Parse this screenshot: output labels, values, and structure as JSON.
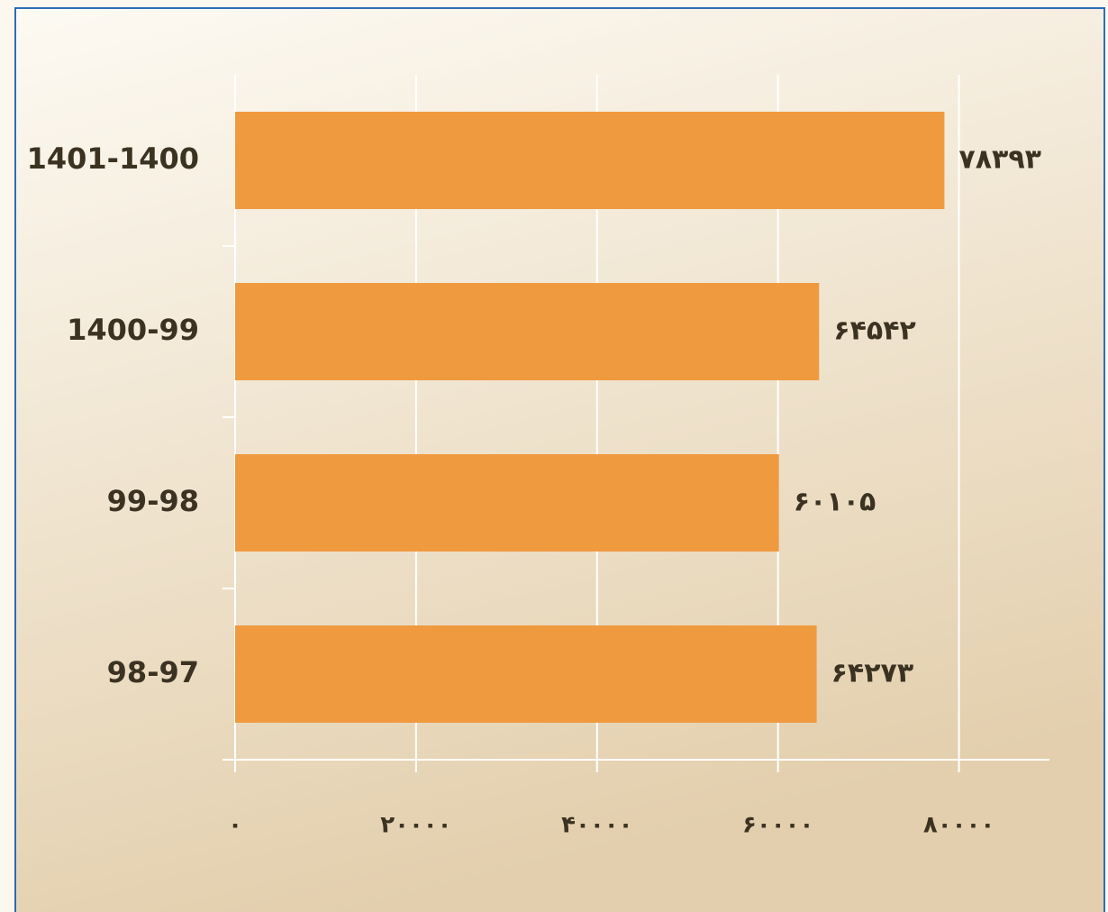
{
  "chart_data": {
    "type": "bar",
    "orientation": "horizontal",
    "categories": [
      "1401-1400",
      "1400-99",
      "99-98",
      "98-97"
    ],
    "values": [
      78393,
      64542,
      60105,
      64273
    ],
    "value_labels": [
      "۷۸۳۹۳",
      "۶۴۵۴۲",
      "۶۰۱۰۵",
      "۶۴۲۷۳"
    ],
    "color": "#f09a40",
    "xlim": [
      0,
      90000
    ],
    "xticks": [
      {
        "value": 0,
        "label": "۰"
      },
      {
        "value": 20000,
        "label": "۲۰۰۰۰"
      },
      {
        "value": 40000,
        "label": "۴۰۰۰۰"
      },
      {
        "value": 60000,
        "label": "۶۰۰۰۰"
      },
      {
        "value": 80000,
        "label": "۸۰۰۰۰"
      }
    ],
    "grid": true
  }
}
